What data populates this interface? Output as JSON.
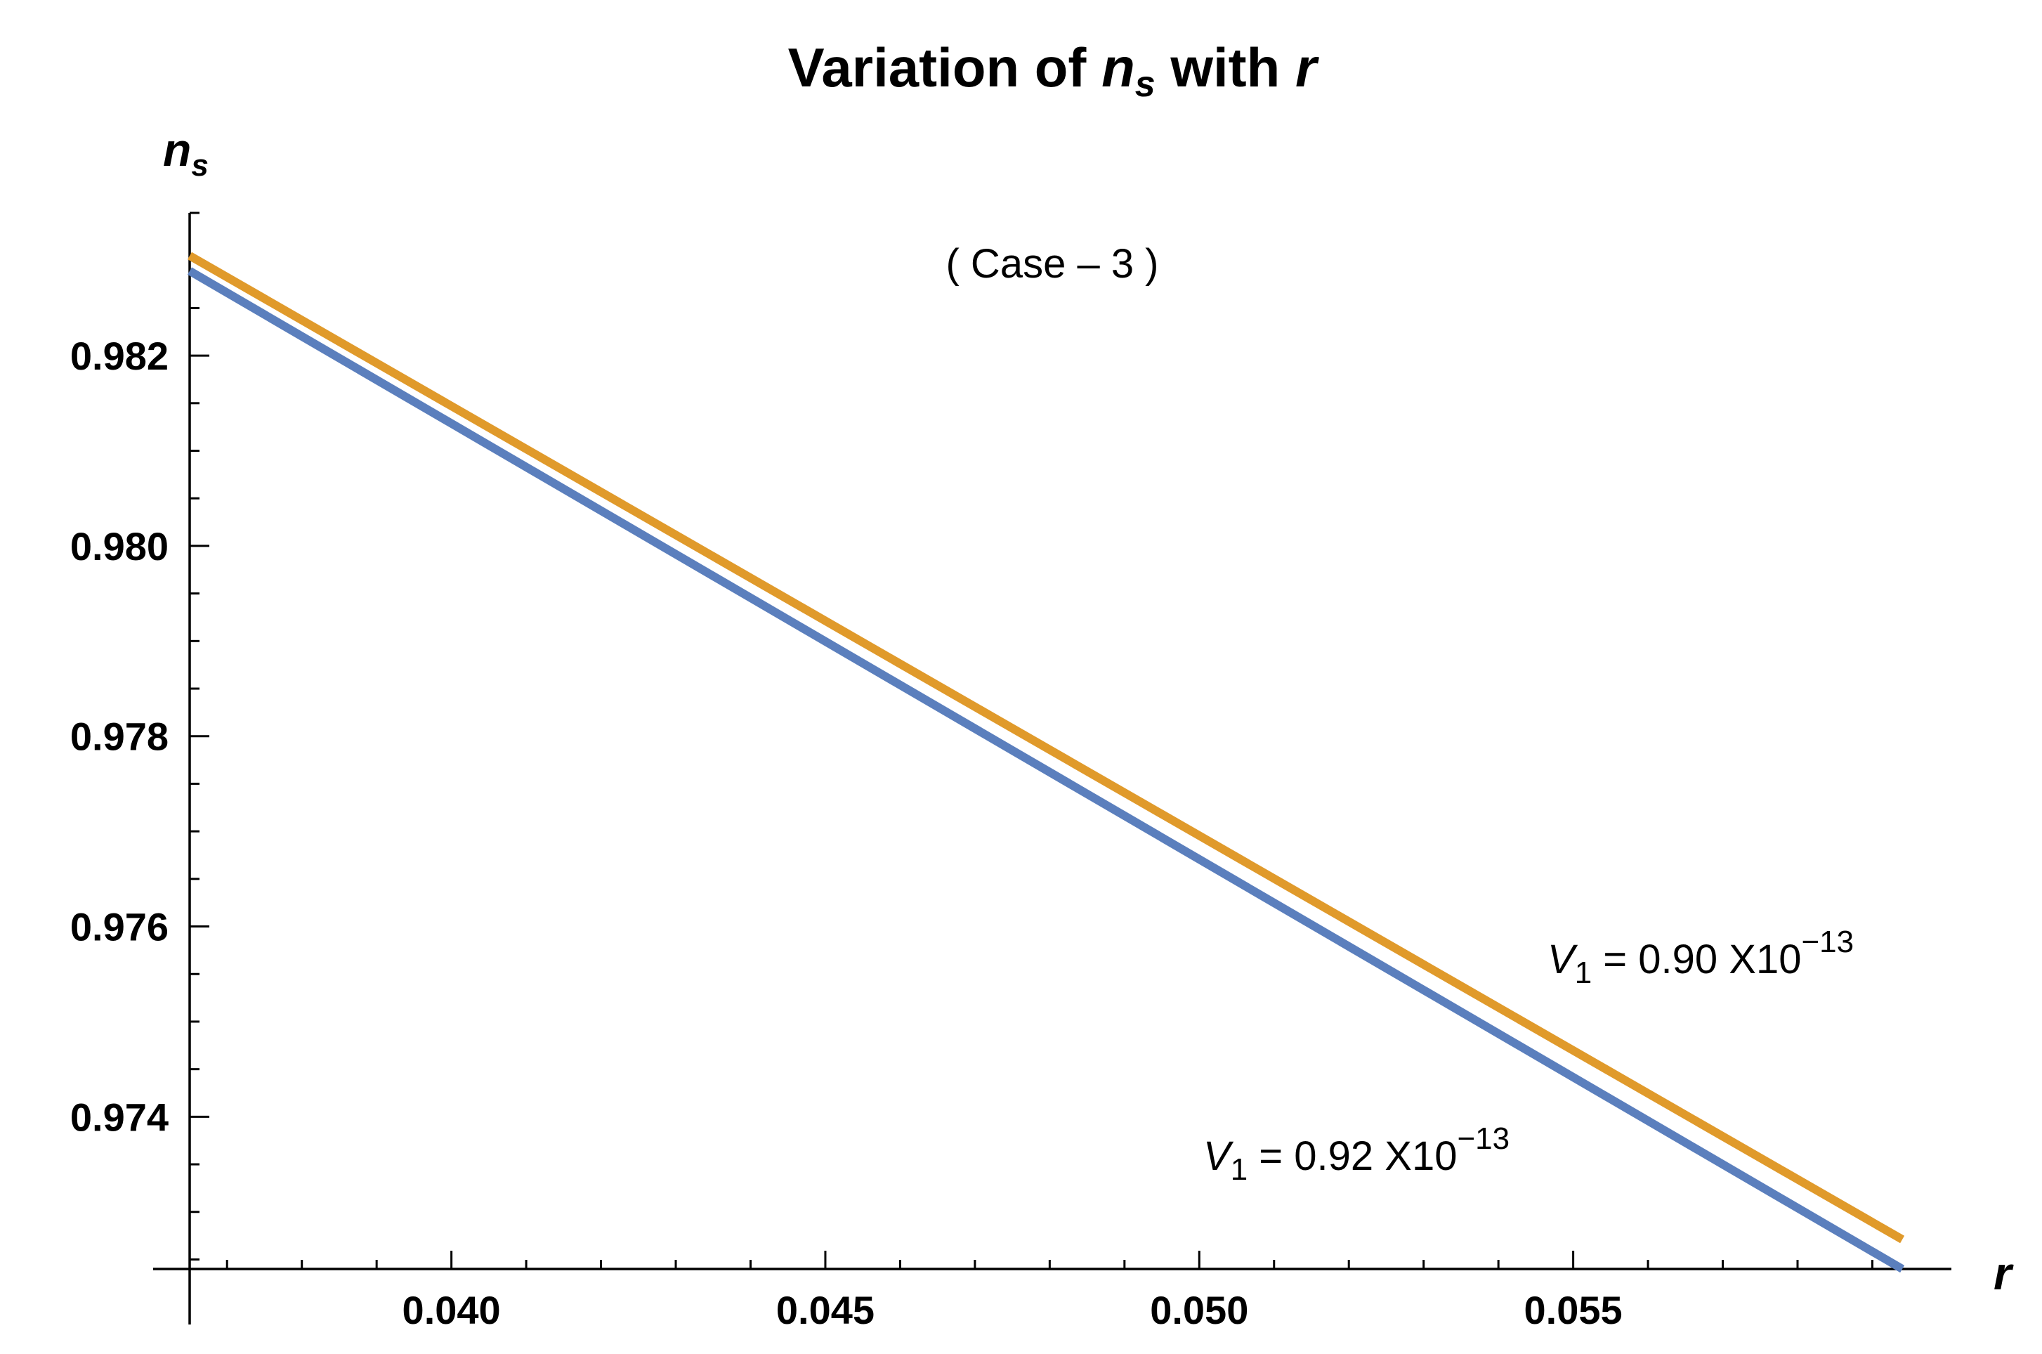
{
  "chart_data": {
    "type": "line",
    "title": {
      "prefix": "Variation of ",
      "var": "n",
      "sub": "s",
      "middle": " with ",
      "var2": "r"
    },
    "xlabel": "r",
    "ylabel": {
      "var": "n",
      "sub": "s"
    },
    "annotation": "( Case – 3 )",
    "xlim": [
      0.0365,
      0.0597
    ],
    "ylim": [
      0.9724,
      0.9835
    ],
    "x_ticks": [
      {
        "value": 0.04,
        "label": "0.040"
      },
      {
        "value": 0.045,
        "label": "0.045"
      },
      {
        "value": 0.05,
        "label": "0.050"
      },
      {
        "value": 0.055,
        "label": "0.055"
      }
    ],
    "x_minor_step": 0.001,
    "y_ticks": [
      {
        "value": 0.974,
        "label": "0.974"
      },
      {
        "value": 0.976,
        "label": "0.976"
      },
      {
        "value": 0.978,
        "label": "0.978"
      },
      {
        "value": 0.98,
        "label": "0.980"
      },
      {
        "value": 0.982,
        "label": "0.982"
      }
    ],
    "y_minor_step": 0.0005,
    "series": [
      {
        "color": "#5b7fbd",
        "x": [
          0.0365,
          0.0594
        ],
        "y": [
          0.98289,
          0.9724
        ],
        "label": {
          "var": "V",
          "sub": "1",
          "text": " = 0.92 X10",
          "sup": "−13"
        }
      },
      {
        "color": "#e09a2b",
        "x": [
          0.0365,
          0.0594
        ],
        "y": [
          0.98305,
          0.97271
        ],
        "label": {
          "var": "V",
          "sub": "1",
          "text": " = 0.90 X10",
          "sup": "−13"
        }
      }
    ],
    "grid": false
  }
}
